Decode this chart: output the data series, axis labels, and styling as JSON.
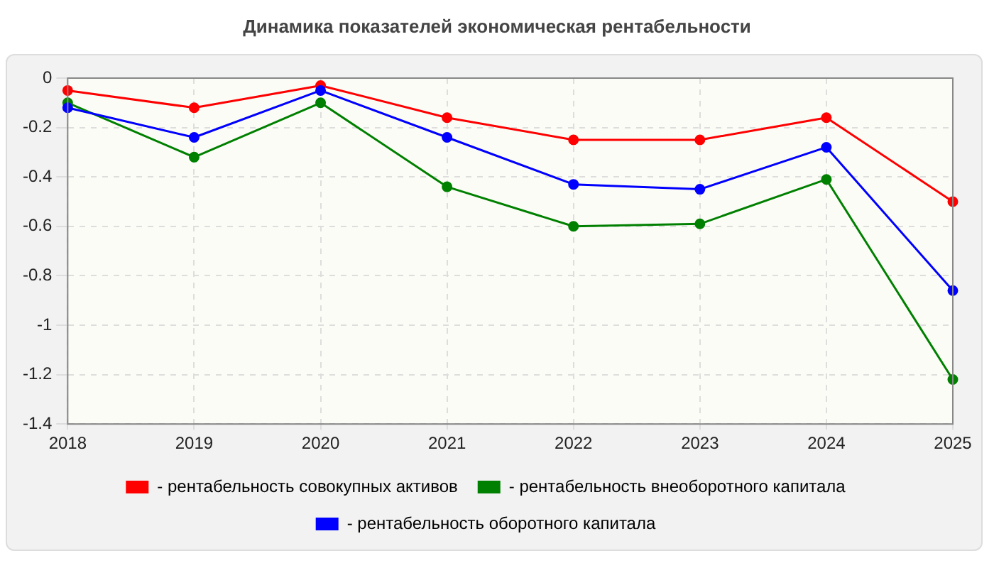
{
  "chart_data": {
    "type": "line",
    "title": "Динамика показателей экономическая рентабельности",
    "categories": [
      "2018",
      "2019",
      "2020",
      "2021",
      "2022",
      "2023",
      "2024",
      "2025"
    ],
    "series": [
      {
        "name": "- рентабельность совокупных активов",
        "color": "#ff0000",
        "values": [
          -0.05,
          -0.12,
          -0.03,
          -0.16,
          -0.25,
          -0.25,
          -0.16,
          -0.5
        ]
      },
      {
        "name": "- рентабельность внеоборотного капитала",
        "color": "#008000",
        "values": [
          -0.1,
          -0.32,
          -0.1,
          -0.44,
          -0.6,
          -0.59,
          -0.41,
          -1.22
        ]
      },
      {
        "name": "- рентабельность оборотного капитала",
        "color": "#0000ff",
        "values": [
          -0.12,
          -0.24,
          -0.05,
          -0.24,
          -0.43,
          -0.45,
          -0.28,
          -0.86
        ]
      }
    ],
    "ylim": [
      -1.4,
      0
    ],
    "yticks": [
      -1.4,
      -1.2,
      -1,
      -0.8,
      -0.6,
      -0.4,
      -0.2,
      0
    ],
    "grid": true,
    "legend": "bottom",
    "marker": "circle",
    "line_style": "solid"
  }
}
